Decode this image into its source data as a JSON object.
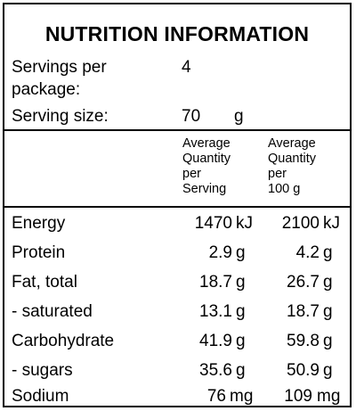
{
  "title": "NUTRITION INFORMATION",
  "servings": {
    "label_line1": "Servings per",
    "label_line2": "package:",
    "value": "4"
  },
  "serving_size": {
    "label": "Serving size:",
    "value": "70",
    "unit": "g"
  },
  "headers": {
    "per_serving": [
      "Average",
      "Quantity",
      "per",
      "Serving"
    ],
    "per_100g": [
      "Average",
      "Quantity",
      "per",
      "100 g"
    ]
  },
  "rows": [
    {
      "name": "Energy",
      "serving": "1470",
      "serving_unit": "kJ",
      "per100": "2100",
      "per100_unit": "kJ"
    },
    {
      "name": "Protein",
      "serving": "2.9",
      "serving_unit": "g",
      "per100": "4.2",
      "per100_unit": "g"
    },
    {
      "name": "Fat, total",
      "serving": "18.7",
      "serving_unit": "g",
      "per100": "26.7",
      "per100_unit": "g"
    },
    {
      "name": "- saturated",
      "serving": "13.1",
      "serving_unit": "g",
      "per100": "18.7",
      "per100_unit": "g"
    },
    {
      "name": "Carbohydrate",
      "serving": "41.9",
      "serving_unit": "g",
      "per100": "59.8",
      "per100_unit": "g"
    },
    {
      "name": "- sugars",
      "serving": "35.6",
      "serving_unit": "g",
      "per100": "50.9",
      "per100_unit": "g"
    },
    {
      "name": "Sodium",
      "serving": "76",
      "serving_unit": "mg",
      "per100": "109",
      "per100_unit": "mg"
    }
  ]
}
